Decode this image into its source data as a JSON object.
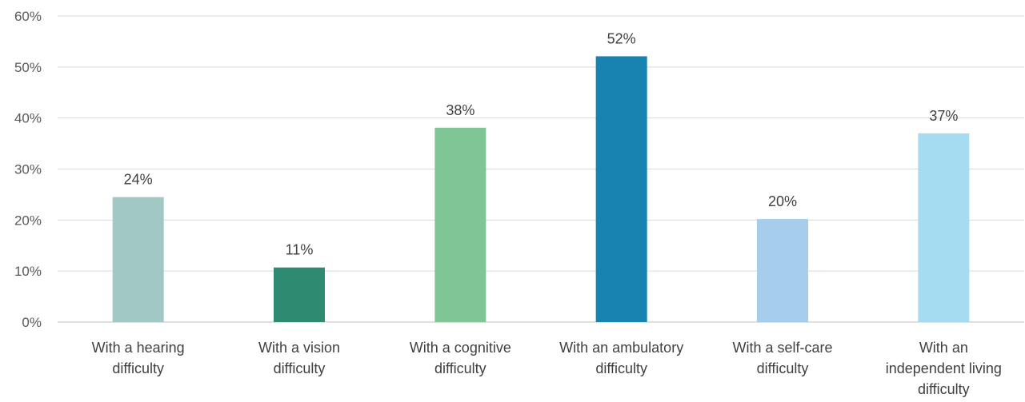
{
  "chart_data": {
    "type": "bar",
    "title": "",
    "xlabel": "",
    "ylabel": "",
    "ylim": [
      0,
      60
    ],
    "y_ticks": [
      0,
      10,
      20,
      30,
      40,
      50,
      60
    ],
    "y_tick_format": "percent",
    "grid": true,
    "legend": "none",
    "categories": [
      [
        "With a hearing",
        "difficulty"
      ],
      [
        "With a vision",
        "difficulty"
      ],
      [
        "With a cognitive",
        "difficulty"
      ],
      [
        "With an ambulatory",
        "difficulty"
      ],
      [
        "With a self-care",
        "difficulty"
      ],
      [
        "With an",
        "independent living",
        "difficulty"
      ]
    ],
    "values": [
      24.5,
      10.7,
      38.1,
      52.1,
      20.2,
      37.0
    ],
    "data_labels": [
      "24%",
      "11%",
      "38%",
      "52%",
      "20%",
      "37%"
    ],
    "colors": [
      "#a2c8c6",
      "#2e8b72",
      "#7fc694",
      "#1882b0",
      "#a6cdec",
      "#a5dcf1"
    ]
  }
}
